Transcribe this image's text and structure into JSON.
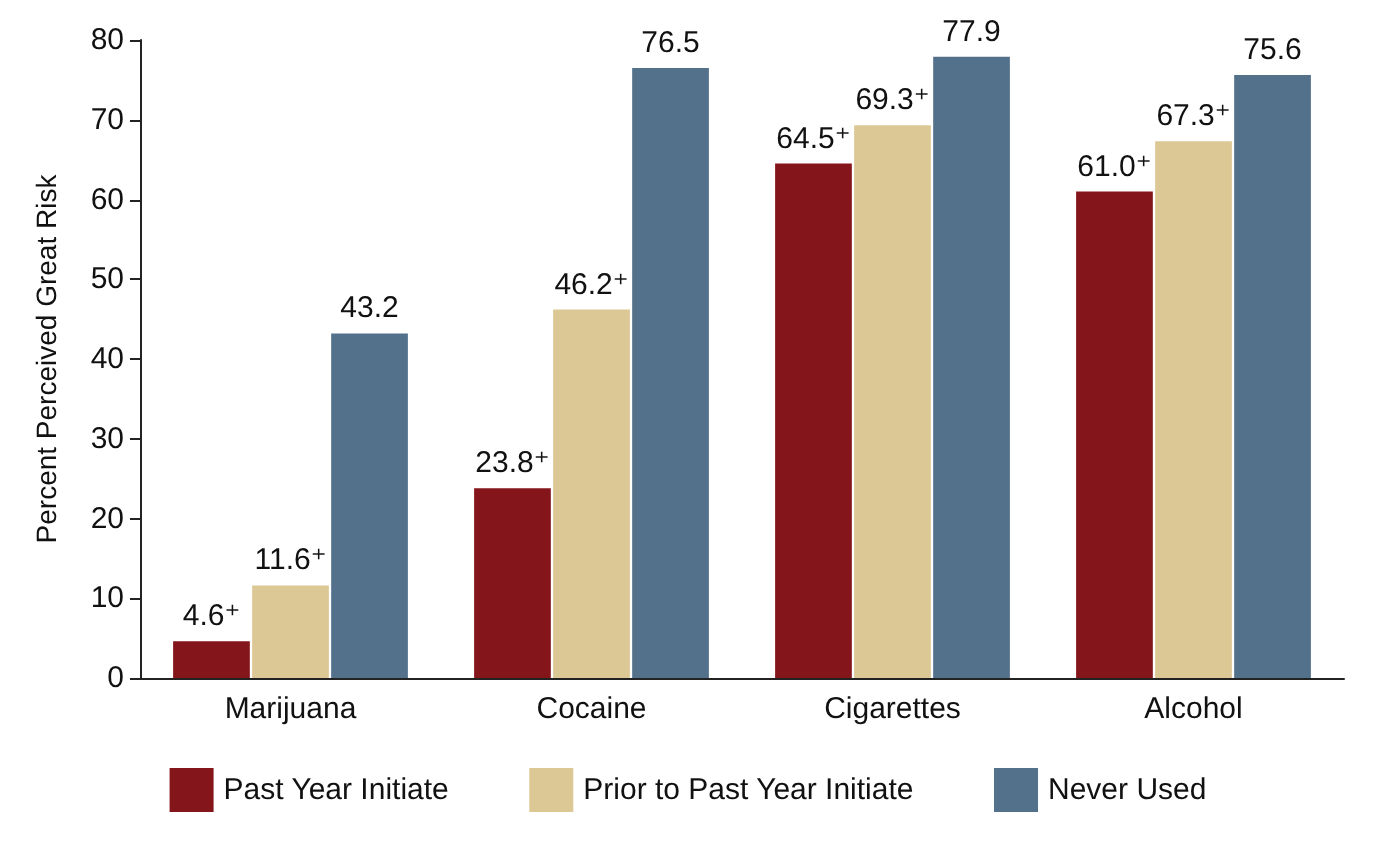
{
  "chart_data": {
    "type": "bar",
    "ylabel": "Percent Perceived Great Risk",
    "categories": [
      "Marijuana",
      "Cocaine",
      "Cigarettes",
      "Alcohol"
    ],
    "series": [
      {
        "name": "Past Year Initiate",
        "color": "#84161b",
        "values": [
          4.6,
          23.8,
          64.5,
          61.0
        ],
        "value_labels": [
          "4.6⁺",
          "23.8⁺",
          "64.5⁺",
          "61.0⁺"
        ]
      },
      {
        "name": "Prior to Past Year Initiate",
        "color": "#dcc894",
        "values": [
          11.6,
          46.2,
          69.3,
          67.3
        ],
        "value_labels": [
          "11.6⁺",
          "46.2⁺",
          "69.3⁺",
          "67.3⁺"
        ]
      },
      {
        "name": "Never Used",
        "color": "#53718b",
        "values": [
          43.2,
          76.5,
          77.9,
          75.6
        ],
        "value_labels": [
          "43.2",
          "76.5",
          "77.9",
          "75.6"
        ]
      }
    ],
    "ylim": [
      0,
      80
    ],
    "yticks": [
      0,
      10,
      20,
      30,
      40,
      50,
      60,
      70,
      80
    ],
    "grid": false,
    "legend": "bottom"
  }
}
